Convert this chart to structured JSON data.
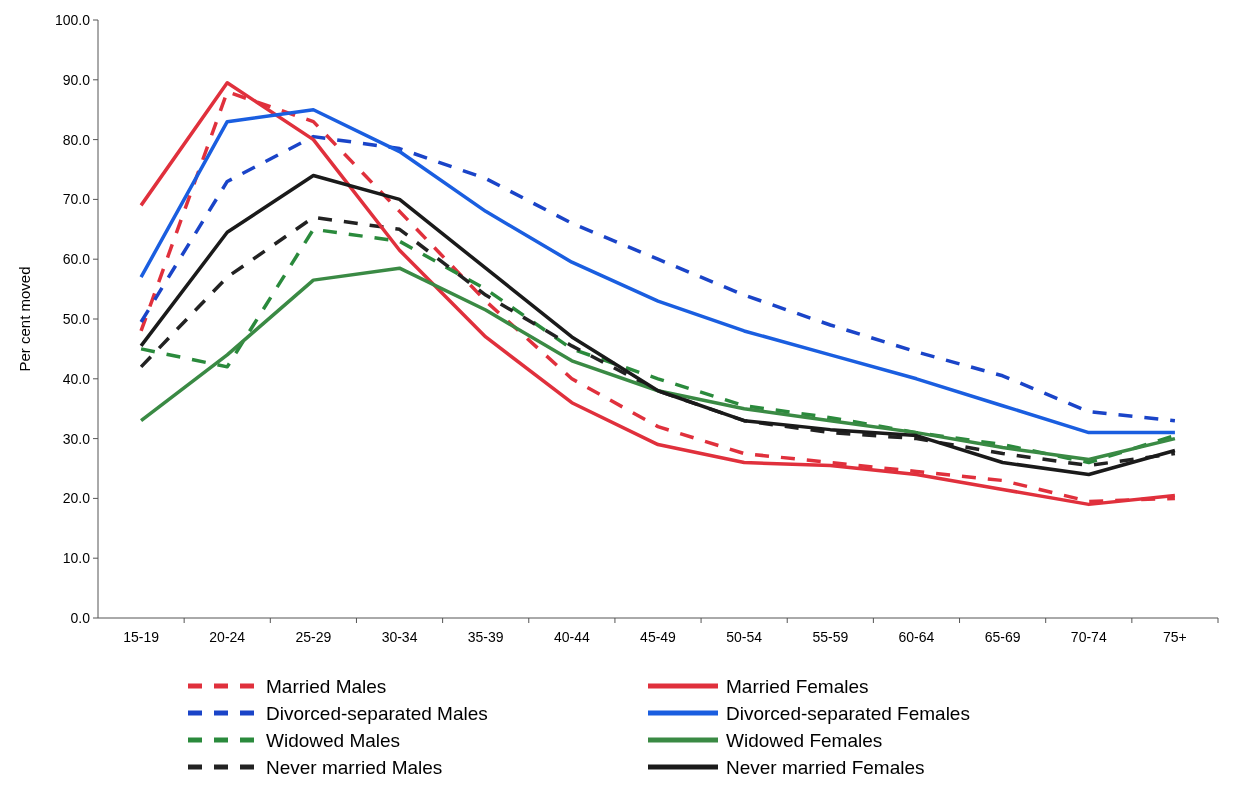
{
  "chart_data": {
    "type": "line",
    "ylabel": "Per cent moved",
    "categories": [
      "15-19",
      "20-24",
      "25-29",
      "30-34",
      "35-39",
      "40-44",
      "45-49",
      "50-54",
      "55-59",
      "60-64",
      "65-69",
      "70-74",
      "75+"
    ],
    "ylim": [
      0,
      100
    ],
    "yticks": [
      {
        "value": 0,
        "label": "0.0"
      },
      {
        "value": 10,
        "label": "10.0"
      },
      {
        "value": 20,
        "label": "20.0"
      },
      {
        "value": 30,
        "label": "30.0"
      },
      {
        "value": 40,
        "label": "40.0"
      },
      {
        "value": 50,
        "label": "50.0"
      },
      {
        "value": 60,
        "label": "60.0"
      },
      {
        "value": 70,
        "label": "70.0"
      },
      {
        "value": 80,
        "label": "80.0"
      },
      {
        "value": 90,
        "label": "90.0"
      },
      {
        "value": 100,
        "label": "100.0"
      }
    ],
    "grid": false,
    "legend": "bottom",
    "marker": "none",
    "series": [
      {
        "name": "Married Males",
        "color": "#e0303c",
        "line_style": "dashed",
        "values": [
          48,
          88,
          83,
          68,
          53,
          40,
          32,
          27.5,
          26,
          24.5,
          23,
          19.5,
          20
        ]
      },
      {
        "name": "Divorced-separated Males",
        "color": "#1a44c8",
        "line_style": "dashed",
        "values": [
          49.5,
          73,
          80.5,
          78.5,
          73.5,
          66,
          60,
          54,
          49,
          44.5,
          40.5,
          34.5,
          33
        ]
      },
      {
        "name": "Widowed Males",
        "color": "#2a8a3c",
        "line_style": "dashed",
        "values": [
          45,
          42,
          65,
          63,
          55,
          45,
          40,
          35.5,
          33.5,
          31,
          29,
          26,
          30.5
        ]
      },
      {
        "name": "Never married Males",
        "color": "#222222",
        "line_style": "dashed",
        "values": [
          42,
          57,
          67,
          65,
          54,
          45.5,
          38,
          33,
          31,
          30,
          27.5,
          25.5,
          27.5
        ]
      },
      {
        "name": "Married Females",
        "color": "#e0303c",
        "line_style": "solid",
        "values": [
          69,
          89.5,
          80,
          61.5,
          47,
          36,
          29,
          26,
          25.5,
          24,
          21.5,
          19,
          20.5
        ]
      },
      {
        "name": "Divorced-separated Females",
        "color": "#1a5ee0",
        "line_style": "solid",
        "values": [
          57,
          83,
          85,
          78,
          68,
          59.5,
          53,
          48,
          44,
          40,
          35.5,
          31,
          31
        ]
      },
      {
        "name": "Widowed Females",
        "color": "#3a8a44",
        "line_style": "solid",
        "values": [
          33,
          44,
          56.5,
          58.5,
          51.5,
          43,
          38,
          35,
          33,
          31,
          28.5,
          26.5,
          30
        ]
      },
      {
        "name": "Never married Females",
        "color": "#1a1a1a",
        "line_style": "solid",
        "values": [
          45.5,
          64.5,
          74,
          70,
          58.5,
          47,
          38,
          33,
          31.5,
          30.5,
          26,
          24,
          28
        ]
      }
    ]
  }
}
